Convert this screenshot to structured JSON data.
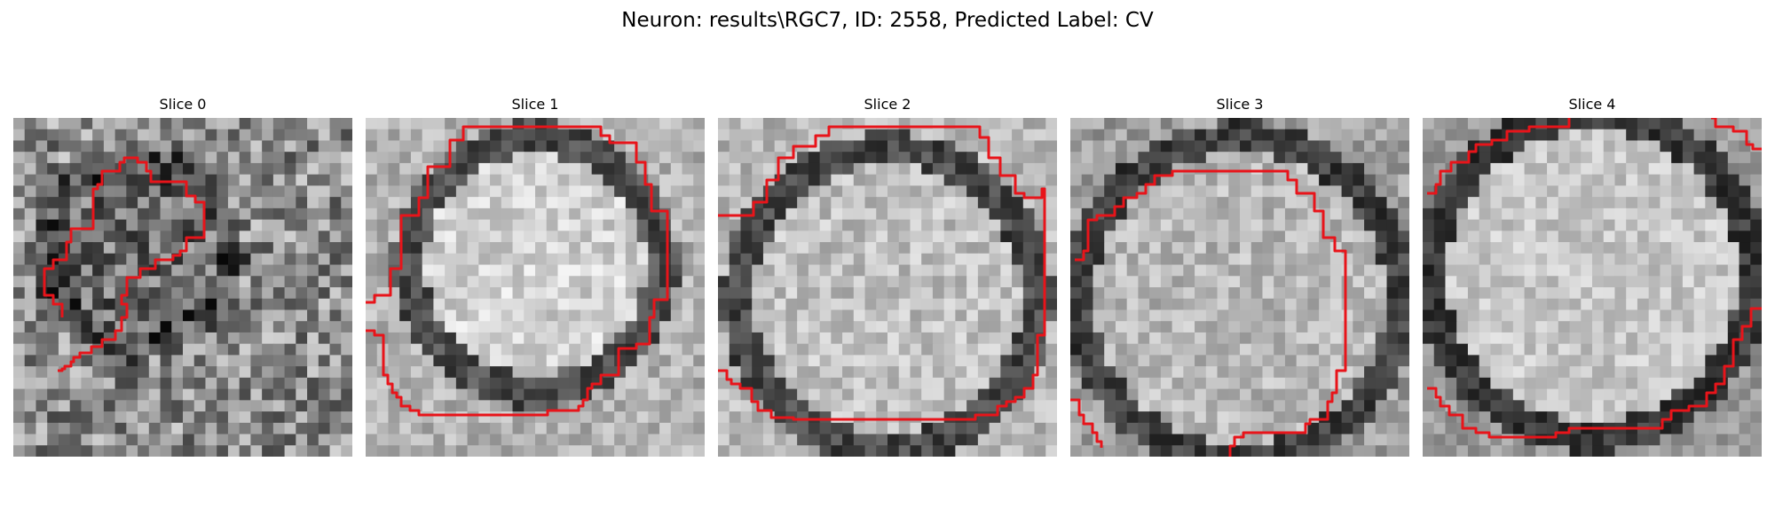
{
  "figure": {
    "title": "Neuron: results\\RGC7, ID: 2558, Predicted Label: CV"
  },
  "panels": [
    {
      "title": "Slice 0"
    },
    {
      "title": "Slice 1"
    },
    {
      "title": "Slice 2"
    },
    {
      "title": "Slice 3"
    },
    {
      "title": "Slice 4"
    }
  ],
  "colors": {
    "contour": "#e8141a",
    "background": "#ffffff"
  }
}
